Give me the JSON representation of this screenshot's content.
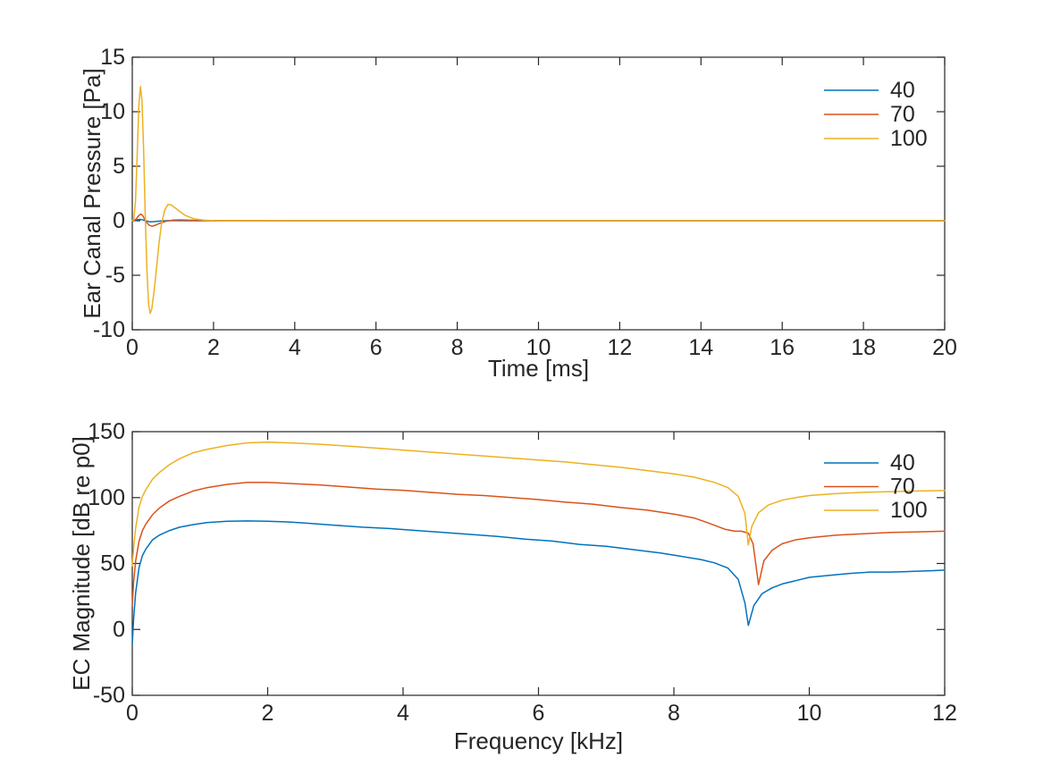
{
  "figure": {
    "background": "#ffffff",
    "axis_color": "#262626",
    "text_color": "#262626"
  },
  "palette": {
    "series_40": "#0072BD",
    "series_70": "#D95319",
    "series_100": "#EDB120"
  },
  "chart_data": [
    {
      "type": "line",
      "title": "",
      "xlabel": "Time [ms]",
      "ylabel": "Ear Canal Pressure [Pa]",
      "xlim": [
        0,
        20
      ],
      "ylim": [
        -10,
        15
      ],
      "xticks": [
        0,
        2,
        4,
        6,
        8,
        10,
        12,
        14,
        16,
        18,
        20
      ],
      "yticks": [
        -10,
        -5,
        0,
        5,
        10,
        15
      ],
      "grid": false,
      "legend": {
        "position": "upper-right",
        "frame": false,
        "entries": [
          "40",
          "70",
          "100"
        ]
      },
      "series": [
        {
          "name": "40",
          "color": "#0072BD",
          "x": [
            0,
            0.06,
            0.12,
            0.18,
            0.24,
            0.3,
            0.38,
            0.46,
            0.56,
            0.7,
            0.9,
            1.2,
            1.6,
            2,
            4,
            8,
            12,
            16,
            20
          ],
          "y": [
            0,
            0.02,
            0.08,
            0.12,
            0.1,
            0.03,
            -0.06,
            -0.1,
            -0.07,
            -0.02,
            0.01,
            0.01,
            0,
            0,
            0,
            0,
            0,
            0,
            0
          ]
        },
        {
          "name": "70",
          "color": "#D95319",
          "x": [
            0,
            0.06,
            0.1,
            0.14,
            0.18,
            0.22,
            0.26,
            0.3,
            0.36,
            0.42,
            0.48,
            0.54,
            0.62,
            0.72,
            0.84,
            1.0,
            1.2,
            1.5,
            2,
            4,
            8,
            12,
            16,
            20
          ],
          "y": [
            0,
            0.05,
            0.18,
            0.38,
            0.55,
            0.6,
            0.45,
            0.18,
            -0.18,
            -0.42,
            -0.5,
            -0.45,
            -0.32,
            -0.16,
            -0.04,
            0.06,
            0.08,
            0.04,
            0.01,
            0,
            0,
            0,
            0,
            0
          ]
        },
        {
          "name": "100",
          "color": "#EDB120",
          "x": [
            0,
            0.04,
            0.08,
            0.12,
            0.16,
            0.2,
            0.24,
            0.28,
            0.32,
            0.36,
            0.4,
            0.44,
            0.48,
            0.54,
            0.6,
            0.66,
            0.72,
            0.8,
            0.88,
            0.96,
            1.05,
            1.15,
            1.3,
            1.5,
            1.75,
            2.0,
            2.5,
            4,
            8,
            12,
            16,
            20
          ],
          "y": [
            0,
            0.2,
            1.8,
            6.0,
            10.5,
            12.3,
            11.0,
            6.5,
            0.5,
            -4.5,
            -7.6,
            -8.5,
            -8.1,
            -6.4,
            -4.2,
            -2.0,
            -0.3,
            1.0,
            1.5,
            1.45,
            1.2,
            0.9,
            0.5,
            0.2,
            0.06,
            0.01,
            0,
            0,
            0,
            0,
            0,
            0
          ]
        }
      ]
    },
    {
      "type": "line",
      "title": "",
      "xlabel": "Frequency [kHz]",
      "ylabel": "EC Magnitude [dB re p0]",
      "xlim": [
        0,
        12
      ],
      "ylim": [
        -50,
        150
      ],
      "xticks": [
        0,
        2,
        4,
        6,
        8,
        10,
        12
      ],
      "yticks": [
        -50,
        0,
        50,
        100,
        150
      ],
      "grid": false,
      "legend": {
        "position": "upper-right",
        "frame": false,
        "entries": [
          "40",
          "70",
          "100"
        ]
      },
      "series": [
        {
          "name": "40",
          "color": "#0072BD",
          "x": [
            0,
            0.02,
            0.05,
            0.1,
            0.15,
            0.2,
            0.3,
            0.4,
            0.55,
            0.7,
            0.9,
            1.1,
            1.4,
            1.7,
            2.0,
            2.3,
            2.6,
            3.0,
            3.4,
            3.8,
            4.2,
            4.6,
            5.0,
            5.4,
            5.8,
            6.2,
            6.6,
            7.0,
            7.4,
            7.8,
            8.1,
            8.4,
            8.6,
            8.8,
            8.95,
            9.05,
            9.1,
            9.18,
            9.3,
            9.45,
            9.6,
            9.8,
            10.0,
            10.3,
            10.6,
            10.9,
            11.2,
            11.5,
            11.8,
            12.0
          ],
          "y": [
            -11,
            8,
            28,
            47,
            56,
            61,
            68,
            71.5,
            75,
            77.5,
            79.5,
            81,
            82,
            82.3,
            82,
            81.5,
            80.5,
            79,
            77.5,
            76.5,
            75,
            73.5,
            72,
            70.5,
            68.5,
            67,
            64.5,
            63,
            60.5,
            58,
            55.5,
            53,
            50.5,
            46.5,
            38,
            20,
            3,
            18,
            27,
            31.5,
            34.5,
            37,
            39.5,
            41,
            42.5,
            43.5,
            43.5,
            44,
            44.5,
            45
          ]
        },
        {
          "name": "70",
          "color": "#D95319",
          "x": [
            0,
            0.02,
            0.05,
            0.1,
            0.15,
            0.2,
            0.3,
            0.4,
            0.55,
            0.7,
            0.9,
            1.1,
            1.4,
            1.7,
            2.0,
            2.4,
            2.8,
            3.2,
            3.6,
            4.0,
            4.4,
            4.8,
            5.2,
            5.6,
            6.0,
            6.4,
            6.8,
            7.2,
            7.6,
            8.0,
            8.3,
            8.55,
            8.75,
            8.9,
            9.0,
            9.1,
            9.17,
            9.25,
            9.33,
            9.45,
            9.6,
            9.8,
            10.0,
            10.4,
            10.8,
            11.2,
            11.6,
            12.0
          ],
          "y": [
            18,
            36,
            52,
            67,
            75,
            80,
            87,
            92,
            97.5,
            101,
            105,
            107.5,
            110,
            111.5,
            111.5,
            110.5,
            109.5,
            108,
            106.5,
            105.5,
            104,
            102.5,
            101.5,
            100,
            98.5,
            96.5,
            95,
            92.5,
            90.5,
            87.5,
            84.5,
            80,
            76,
            74.5,
            74.5,
            73,
            65,
            34,
            52,
            60,
            65,
            68,
            69.5,
            71.5,
            72.5,
            73.5,
            74,
            74.5
          ]
        },
        {
          "name": "100",
          "color": "#EDB120",
          "x": [
            0,
            0.02,
            0.05,
            0.1,
            0.15,
            0.2,
            0.3,
            0.4,
            0.55,
            0.7,
            0.9,
            1.1,
            1.4,
            1.7,
            2.0,
            2.4,
            2.8,
            3.2,
            3.6,
            4.0,
            4.4,
            4.8,
            5.2,
            5.6,
            6.0,
            6.4,
            6.8,
            7.2,
            7.6,
            8.0,
            8.3,
            8.6,
            8.8,
            8.95,
            9.05,
            9.1,
            9.15,
            9.25,
            9.4,
            9.6,
            9.8,
            10.0,
            10.4,
            10.8,
            11.2,
            11.6,
            12.0
          ],
          "y": [
            48,
            62,
            77,
            93,
            101,
            106,
            114,
            119,
            125,
            129.5,
            134,
            136.5,
            139.5,
            141.5,
            142,
            141.3,
            140.3,
            139,
            137.5,
            136,
            134.5,
            133,
            131.5,
            130,
            128.5,
            127,
            125,
            123,
            120.5,
            118,
            115.5,
            111.5,
            107.5,
            101,
            88,
            64,
            78,
            88.5,
            94.5,
            98,
            100,
            101.5,
            103,
            104,
            104.5,
            105,
            105.3
          ]
        }
      ]
    }
  ]
}
